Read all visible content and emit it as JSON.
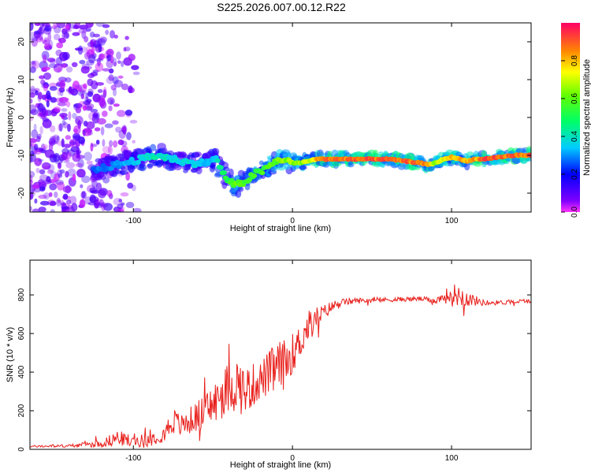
{
  "title": "S225.2026.007.00.12.R22",
  "chart_data": [
    {
      "type": "heatmap",
      "xlabel": "Height of straight line (km)",
      "ylabel": "Frequency (Hz)",
      "xlim": [
        -165,
        150
      ],
      "ylim": [
        -25,
        25
      ],
      "xticks": [
        -100,
        0,
        100
      ],
      "yticks": [
        -20,
        -10,
        0,
        10,
        20
      ],
      "colorbar": {
        "label": "Normalized spectral amplitude",
        "range": [
          0,
          1
        ],
        "ticks": [
          "0.0",
          "0.2",
          "0.4",
          "0.6",
          "0.8"
        ]
      },
      "ridge": {
        "x": [
          -125,
          -115,
          -105,
          -95,
          -85,
          -75,
          -65,
          -55,
          -48,
          -42,
          -36,
          -30,
          -24,
          -18,
          -12,
          -6,
          0,
          5,
          10,
          15,
          20,
          30,
          40,
          50,
          60,
          70,
          80,
          85,
          90,
          95,
          100,
          105,
          110,
          115,
          120,
          130,
          140,
          150
        ],
        "frequency": [
          -14,
          -13,
          -12,
          -11,
          -10,
          -11,
          -12,
          -12,
          -11,
          -16,
          -18,
          -17,
          -15,
          -14,
          -12,
          -11,
          -12,
          -12,
          -11.5,
          -11,
          -11,
          -11,
          -11,
          -11,
          -11,
          -11.5,
          -12,
          -12.5,
          -12,
          -11,
          -10.5,
          -11,
          -11.5,
          -11,
          -11,
          -10.5,
          -10,
          -10
        ],
        "amplitude": [
          0.3,
          0.3,
          0.35,
          0.4,
          0.45,
          0.4,
          0.4,
          0.35,
          0.4,
          0.55,
          0.65,
          0.6,
          0.6,
          0.6,
          0.65,
          0.7,
          0.7,
          0.7,
          0.75,
          0.85,
          0.95,
          0.95,
          0.95,
          0.95,
          0.95,
          0.95,
          0.95,
          0.9,
          0.7,
          0.8,
          0.85,
          0.85,
          0.85,
          0.9,
          0.95,
          0.95,
          0.95,
          0.95
        ]
      }
    },
    {
      "type": "line",
      "xlabel": "Height of straight line (km)",
      "ylabel": "SNR (10 * v/v)",
      "xlim": [
        -165,
        150
      ],
      "ylim": [
        0,
        980
      ],
      "xticks": [
        -100,
        0,
        100
      ],
      "yticks": [
        0,
        200,
        400,
        600,
        800
      ],
      "series": [
        {
          "name": "SNR",
          "color": "#e8201c",
          "x": [
            -165,
            -140,
            -120,
            -110,
            -100,
            -90,
            -80,
            -75,
            -70,
            -60,
            -50,
            -40,
            -35,
            -30,
            -20,
            -10,
            -5,
            0,
            5,
            10,
            15,
            20,
            25,
            30,
            40,
            60,
            80,
            90,
            95,
            100,
            105,
            110,
            120,
            130,
            140,
            150
          ],
          "y": [
            15,
            18,
            30,
            60,
            40,
            50,
            90,
            150,
            120,
            170,
            230,
            320,
            340,
            300,
            360,
            420,
            440,
            500,
            560,
            640,
            680,
            710,
            740,
            760,
            770,
            775,
            780,
            770,
            790,
            800,
            800,
            780,
            760,
            760,
            765,
            770
          ],
          "noise": [
            5,
            8,
            20,
            40,
            30,
            35,
            50,
            70,
            60,
            80,
            110,
            140,
            150,
            130,
            100,
            140,
            130,
            100,
            90,
            80,
            60,
            40,
            30,
            20,
            15,
            12,
            12,
            14,
            30,
            60,
            60,
            40,
            15,
            12,
            12,
            12
          ]
        }
      ]
    }
  ]
}
